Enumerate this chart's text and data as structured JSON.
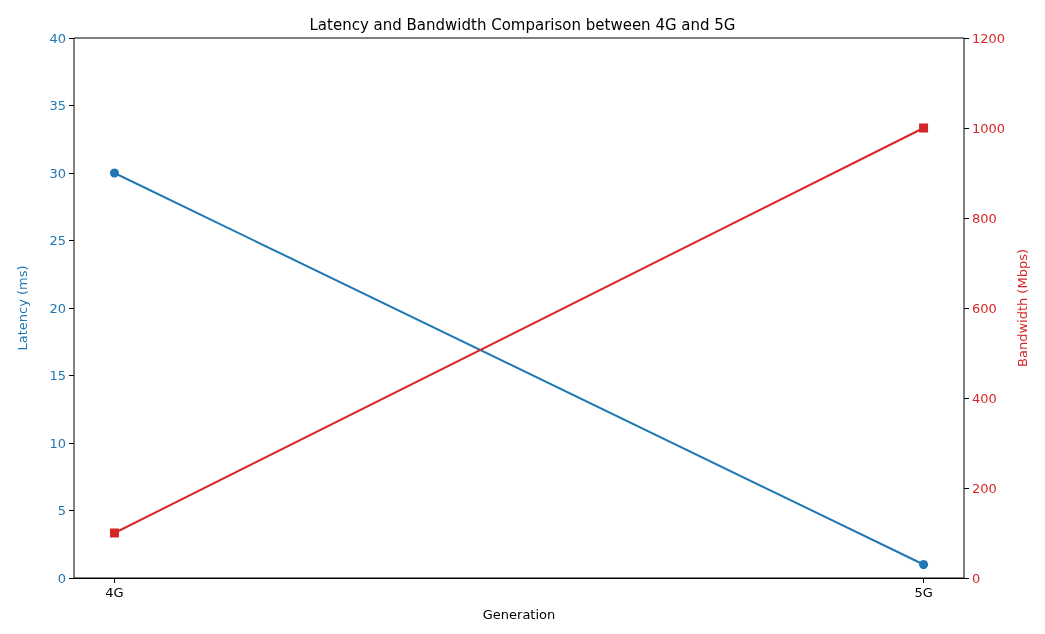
{
  "chart_data": {
    "type": "line",
    "title": "Latency and Bandwidth Comparison between 4G and 5G",
    "xlabel": "Generation",
    "ylabel": "Latency (ms)",
    "y2label": "Bandwidth (Mbps)",
    "categories": [
      "4G",
      "5G"
    ],
    "series": [
      {
        "color": "#1f77b4",
        "values": [
          30,
          1
        ],
        "marker": "circle"
      },
      {
        "color": "#d62728",
        "values": [
          100,
          1000
        ],
        "marker": "square",
        "axis": "y2"
      }
    ],
    "ylim": [
      0,
      40
    ],
    "yticks": [
      0,
      5,
      10,
      15,
      20,
      25,
      30,
      35,
      40
    ],
    "y2lim": [
      0,
      1200
    ],
    "y2ticks": [
      0,
      200,
      400,
      600,
      800,
      1000,
      1200
    ],
    "grid": false
  }
}
